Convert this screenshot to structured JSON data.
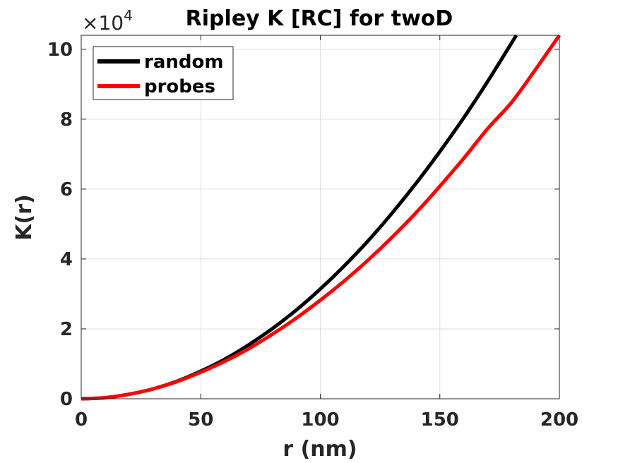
{
  "chart_data": {
    "type": "line",
    "title": "Ripley K [RC] for twoD",
    "xlabel": "r (nm)",
    "ylabel": "K(r)",
    "exponent_multiplier": "×10",
    "exponent_power": "4",
    "xlim": [
      0,
      200
    ],
    "ylim": [
      0,
      10.4
    ],
    "xticks": [
      0,
      50,
      100,
      150,
      200
    ],
    "xtick_labels": [
      "0",
      "50",
      "100",
      "150",
      "200"
    ],
    "yticks": [
      0,
      2,
      4,
      6,
      8,
      10
    ],
    "ytick_labels": [
      "0",
      "2",
      "4",
      "6",
      "8",
      "10"
    ],
    "grid": true,
    "legend_position": "top-left",
    "series": [
      {
        "name": "random",
        "color": "#000000",
        "x": [
          0,
          10,
          20,
          30,
          40,
          50,
          60,
          70,
          80,
          90,
          100,
          110,
          120,
          130,
          140,
          150,
          160,
          170,
          180,
          182
        ],
        "y": [
          0,
          0.03,
          0.13,
          0.28,
          0.5,
          0.79,
          1.13,
          1.54,
          2.01,
          2.54,
          3.14,
          3.8,
          4.52,
          5.31,
          6.16,
          7.07,
          8.04,
          9.08,
          10.18,
          10.4
        ]
      },
      {
        "name": "probes",
        "color": "#ff0000",
        "x": [
          0,
          10,
          20,
          30,
          40,
          50,
          60,
          70,
          80,
          90,
          100,
          110,
          120,
          130,
          140,
          150,
          160,
          170,
          180,
          190,
          200
        ],
        "y": [
          0,
          0.03,
          0.13,
          0.28,
          0.49,
          0.76,
          1.07,
          1.43,
          1.85,
          2.31,
          2.82,
          3.37,
          3.97,
          4.62,
          5.32,
          6.08,
          6.88,
          7.73,
          8.48,
          9.42,
          10.4
        ]
      }
    ]
  }
}
